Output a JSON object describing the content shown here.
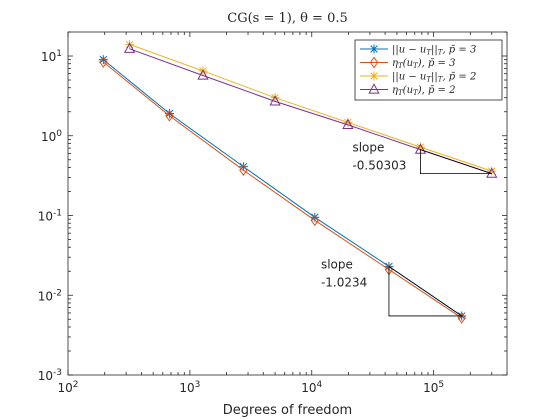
{
  "chart_data": {
    "type": "line",
    "title": "CG(s = 1), θ = 0.5",
    "xlabel": "Degrees of freedom",
    "ylabel": "",
    "xscale": "log",
    "yscale": "log",
    "xlim": [
      100,
      400000
    ],
    "ylim": [
      0.001,
      20
    ],
    "xticks": [
      {
        "value": 100,
        "base": "10",
        "exp": "2"
      },
      {
        "value": 1000,
        "base": "10",
        "exp": "3"
      },
      {
        "value": 10000,
        "base": "10",
        "exp": "4"
      },
      {
        "value": 100000,
        "base": "10",
        "exp": "5"
      }
    ],
    "yticks": [
      {
        "value": 0.001,
        "base": "10",
        "exp": "-3"
      },
      {
        "value": 0.01,
        "base": "10",
        "exp": "-2"
      },
      {
        "value": 0.1,
        "base": "10",
        "exp": "-1"
      },
      {
        "value": 1,
        "base": "10",
        "exp": "0"
      },
      {
        "value": 10,
        "base": "10",
        "exp": "1"
      }
    ],
    "grid": false,
    "legend_position": "top-right",
    "series": [
      {
        "name": "||u − u_T||_T, p̄ = 3",
        "legend_main": "||u − u",
        "legend_sub": "T",
        "legend_rest": "||",
        "legend_sub2": "T",
        "legend_tail": ", p̄ = 3",
        "color": "#0072BD",
        "marker": "star",
        "x": [
          195,
          680,
          2750,
          10600,
          43000,
          170000
        ],
        "y": [
          9.0,
          1.9,
          0.41,
          0.095,
          0.023,
          0.0055
        ]
      },
      {
        "name": "η_T(u_T), p̄ = 3",
        "legend_main": "η",
        "legend_sub": "T",
        "legend_rest": "(u",
        "legend_sub2": "T",
        "legend_tail": "), p̄ = 3",
        "color": "#D95319",
        "marker": "diamond",
        "x": [
          195,
          680,
          2750,
          10600,
          43000,
          170000
        ],
        "y": [
          8.4,
          1.78,
          0.37,
          0.087,
          0.021,
          0.0052
        ]
      },
      {
        "name": "||u − u_T||_T, p̄ = 2",
        "legend_main": "||u − u",
        "legend_sub": "T",
        "legend_rest": "||",
        "legend_sub2": "T",
        "legend_tail": ", p̄ = 2",
        "color": "#EDB120",
        "marker": "star",
        "x": [
          320,
          1280,
          5000,
          19800,
          78000,
          300000
        ],
        "y": [
          14.0,
          6.5,
          3.0,
          1.47,
          0.72,
          0.36
        ]
      },
      {
        "name": "η_T(u_T), p̄ = 2",
        "legend_main": "η",
        "legend_sub": "T",
        "legend_rest": "(u",
        "legend_sub2": "T",
        "legend_tail": "), p̄ = 2",
        "color": "#7E2F8E",
        "marker": "triangle",
        "x": [
          320,
          1280,
          5000,
          19800,
          78000,
          300000
        ],
        "y": [
          12.3,
          5.7,
          2.7,
          1.37,
          0.67,
          0.335
        ]
      }
    ],
    "slope_annotations": [
      {
        "label_line1": "slope",
        "label_line2": "-0.50303",
        "x1": 78000,
        "y1": 0.67,
        "x2": 300000,
        "y2": 0.335
      },
      {
        "label_line1": "slope",
        "label_line2": "-1.0234",
        "x1": 43000,
        "y1": 0.023,
        "x2": 170000,
        "y2": 0.0055
      }
    ]
  }
}
